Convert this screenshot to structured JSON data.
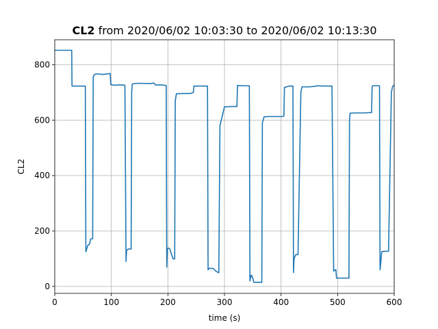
{
  "chart_data": {
    "type": "line",
    "title_bold": "CL2",
    "title_rest": " from 2020/06/02 10:03:30 to 2020/06/02 10:13:30",
    "xlabel": "time (s)",
    "ylabel": "CL2",
    "xlim": [
      0,
      600
    ],
    "ylim": [
      -25,
      890
    ],
    "xticks": [
      0,
      100,
      200,
      300,
      400,
      500,
      600
    ],
    "yticks": [
      0,
      200,
      400,
      600,
      800
    ],
    "grid": true,
    "series_color": "#1f77b4",
    "series": [
      {
        "x": [
          0,
          30,
          30.5,
          52,
          54,
          55,
          58,
          59,
          60,
          62,
          63,
          66,
          67,
          68,
          70,
          75,
          85,
          98,
          99,
          105,
          113,
          118,
          124,
          126,
          127,
          128,
          130,
          135,
          136,
          137,
          140,
          150,
          170,
          175,
          178,
          188,
          197,
          198,
          199,
          200,
          203,
          209,
          212,
          213,
          215,
          225,
          240,
          245,
          246,
          268,
          270,
          271,
          273,
          280,
          285,
          289,
          290,
          292,
          300,
          315,
          322,
          323,
          333,
          342,
          344,
          345,
          347,
          348,
          350,
          352,
          353,
          360,
          366,
          367,
          370,
          380,
          400,
          405,
          406,
          415,
          419,
          421,
          422,
          423,
          425,
          426,
          430,
          435,
          437,
          440,
          450,
          460,
          463,
          475,
          490,
          493,
          496,
          497,
          498,
          502,
          505,
          518,
          520,
          521,
          522,
          530,
          545,
          558,
          560,
          561,
          562,
          573,
          574,
          575,
          576,
          578,
          582,
          583,
          585,
          590,
          595,
          597,
          598,
          600
        ],
        "y": [
          852,
          852,
          723,
          723,
          723,
          125,
          145,
          150,
          150,
          155,
          170,
          172,
          172,
          755,
          765,
          767,
          765,
          768,
          728,
          726,
          727,
          727,
          726,
          90,
          130,
          132,
          135,
          135,
          700,
          730,
          732,
          733,
          732,
          734,
          727,
          727,
          725,
          70,
          135,
          138,
          137,
          100,
          99,
          670,
          695,
          696,
          696,
          700,
          723,
          723,
          723,
          60,
          65,
          65,
          55,
          50,
          50,
          580,
          648,
          649,
          649,
          725,
          724,
          724,
          724,
          20,
          40,
          40,
          30,
          15,
          15,
          15,
          15,
          590,
          612,
          613,
          613,
          614,
          718,
          723,
          723,
          723,
          50,
          100,
          110,
          115,
          115,
          700,
          720,
          720,
          720,
          722,
          724,
          723,
          723,
          55,
          60,
          60,
          30,
          30,
          30,
          30,
          30,
          600,
          625,
          626,
          626,
          627,
          627,
          720,
          724,
          724,
          724,
          60,
          80,
          125,
          127,
          127,
          127,
          127,
          700,
          720,
          724,
          725
        ]
      }
    ]
  }
}
